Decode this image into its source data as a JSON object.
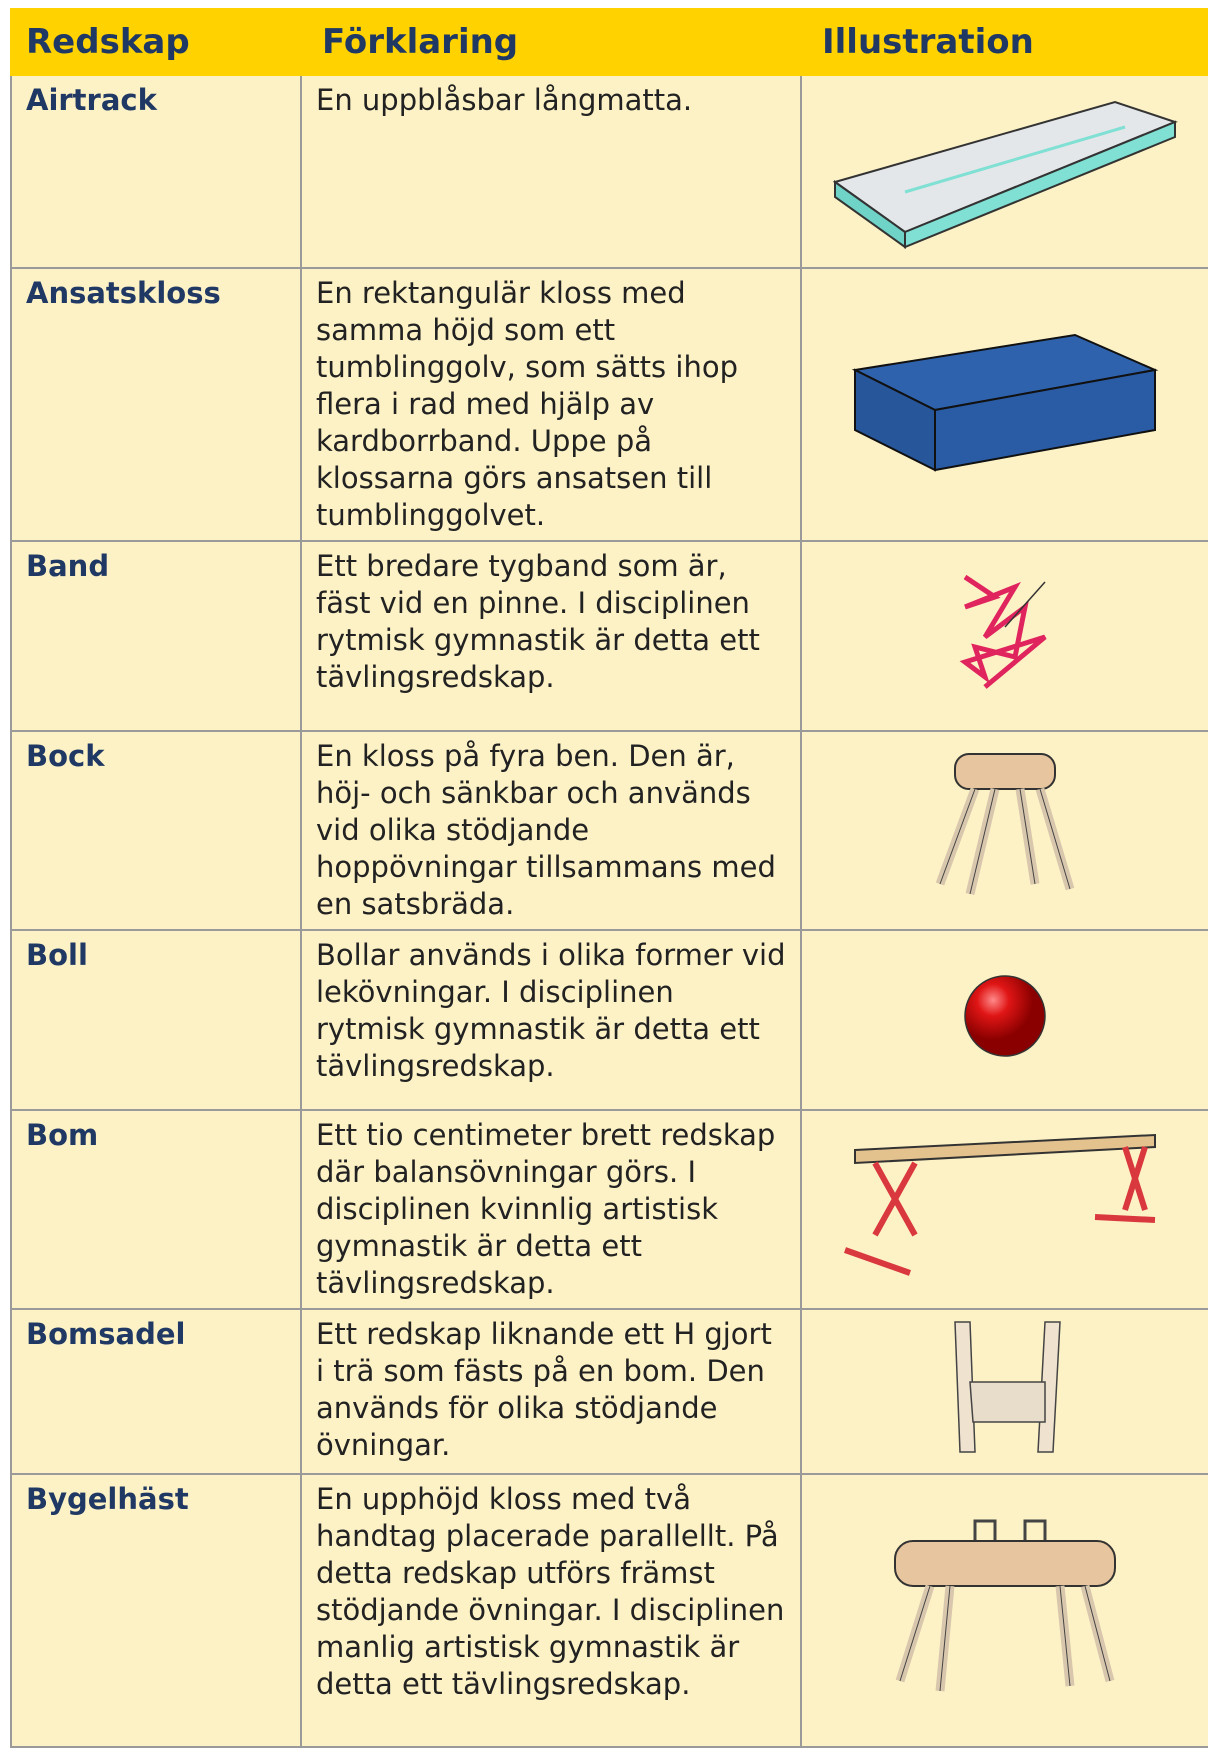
{
  "table": {
    "header": [
      "Redskap",
      "Förklaring",
      "Illustration"
    ],
    "rows": [
      [
        "Airtrack",
        "En uppblåsbar långmatta."
      ],
      [
        "Ansatskloss",
        "En rektangulär kloss med samma höjd som ett tumblinggolv, som sätts ihop flera i rad med hjälp av kardborrband. Uppe på klossarna görs ansatsen till tumblinggolvet."
      ],
      [
        "Band",
        "Ett bredare tygband som är, fäst vid en pinne. I disciplinen rytmisk gymnastik är detta ett tävlingsredskap."
      ],
      [
        "Bock",
        "En kloss på fyra ben. Den är, höj- och sänkbar och används vid olika stödjande hoppövningar tillsammans med en satsbräda."
      ],
      [
        "Boll",
        "Bollar används i olika former vid lekövningar. I disciplinen rytmisk gymnastik är detta ett tävlingsredskap."
      ],
      [
        "Bom",
        "Ett tio centimeter brett redskap där balansövningar görs. I disciplinen kvinnlig artistisk gymnastik är detta ett tävlingsredskap."
      ],
      [
        "Bomsadel",
        "Ett redskap liknande ett H gjort i trä som fästs på en bom. Den används för olika stödjande övningar."
      ],
      [
        "Bygelhäst",
        "En upphöjd kloss med två handtag placerade parallellt. På detta redskap utförs främst stödjande övningar. I disciplinen manlig artistisk gymnastik är detta ett tävlingsredskap."
      ]
    ]
  }
}
